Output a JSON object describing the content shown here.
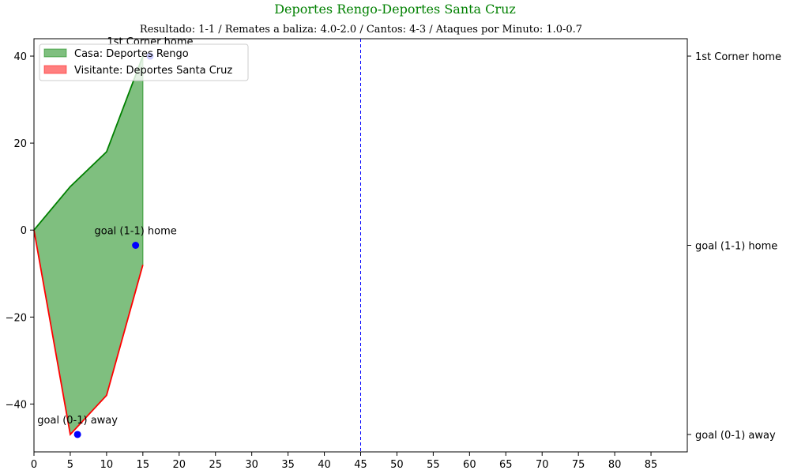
{
  "chart_data": {
    "type": "area",
    "title": "Deportes Rengo-Deportes Santa Cruz",
    "subtitle": "Resultado: 1-1 / Remates a baliza: 4.0-2.0 / Cantos: 4-3 / Ataques por Minuto: 1.0-0.7",
    "xlim": [
      0,
      90
    ],
    "ylim": [
      -51,
      44
    ],
    "x_ticks": [
      0,
      5,
      10,
      15,
      20,
      25,
      30,
      35,
      40,
      45,
      50,
      55,
      60,
      65,
      70,
      75,
      80,
      85
    ],
    "y_ticks": [
      -40,
      -20,
      0,
      20,
      40
    ],
    "series": [
      {
        "name": "Casa: Deportes Rengo",
        "color": "#008000",
        "fill": "#008000",
        "x": [
          0,
          5,
          10,
          15
        ],
        "values": [
          0,
          10,
          18,
          40
        ]
      },
      {
        "name": "Visitante: Deportes Santa Cruz",
        "color": "#ff0000",
        "fill": "#ff0000",
        "x": [
          0,
          5,
          10,
          15
        ],
        "values": [
          0,
          -47,
          -38,
          -8
        ]
      }
    ],
    "legend_position": "top-left",
    "vline": {
      "x": 45,
      "color": "#0000ff",
      "style": "dashed"
    },
    "events": [
      {
        "x": 16,
        "y": 40,
        "label": "1st Corner home"
      },
      {
        "x": 14,
        "y": -3.5,
        "label": "goal (1-1) home"
      },
      {
        "x": 6,
        "y": -47,
        "label": "goal (0-1) away"
      }
    ],
    "event_color": "#0000ff",
    "title_color": "#008000",
    "grid": false
  }
}
